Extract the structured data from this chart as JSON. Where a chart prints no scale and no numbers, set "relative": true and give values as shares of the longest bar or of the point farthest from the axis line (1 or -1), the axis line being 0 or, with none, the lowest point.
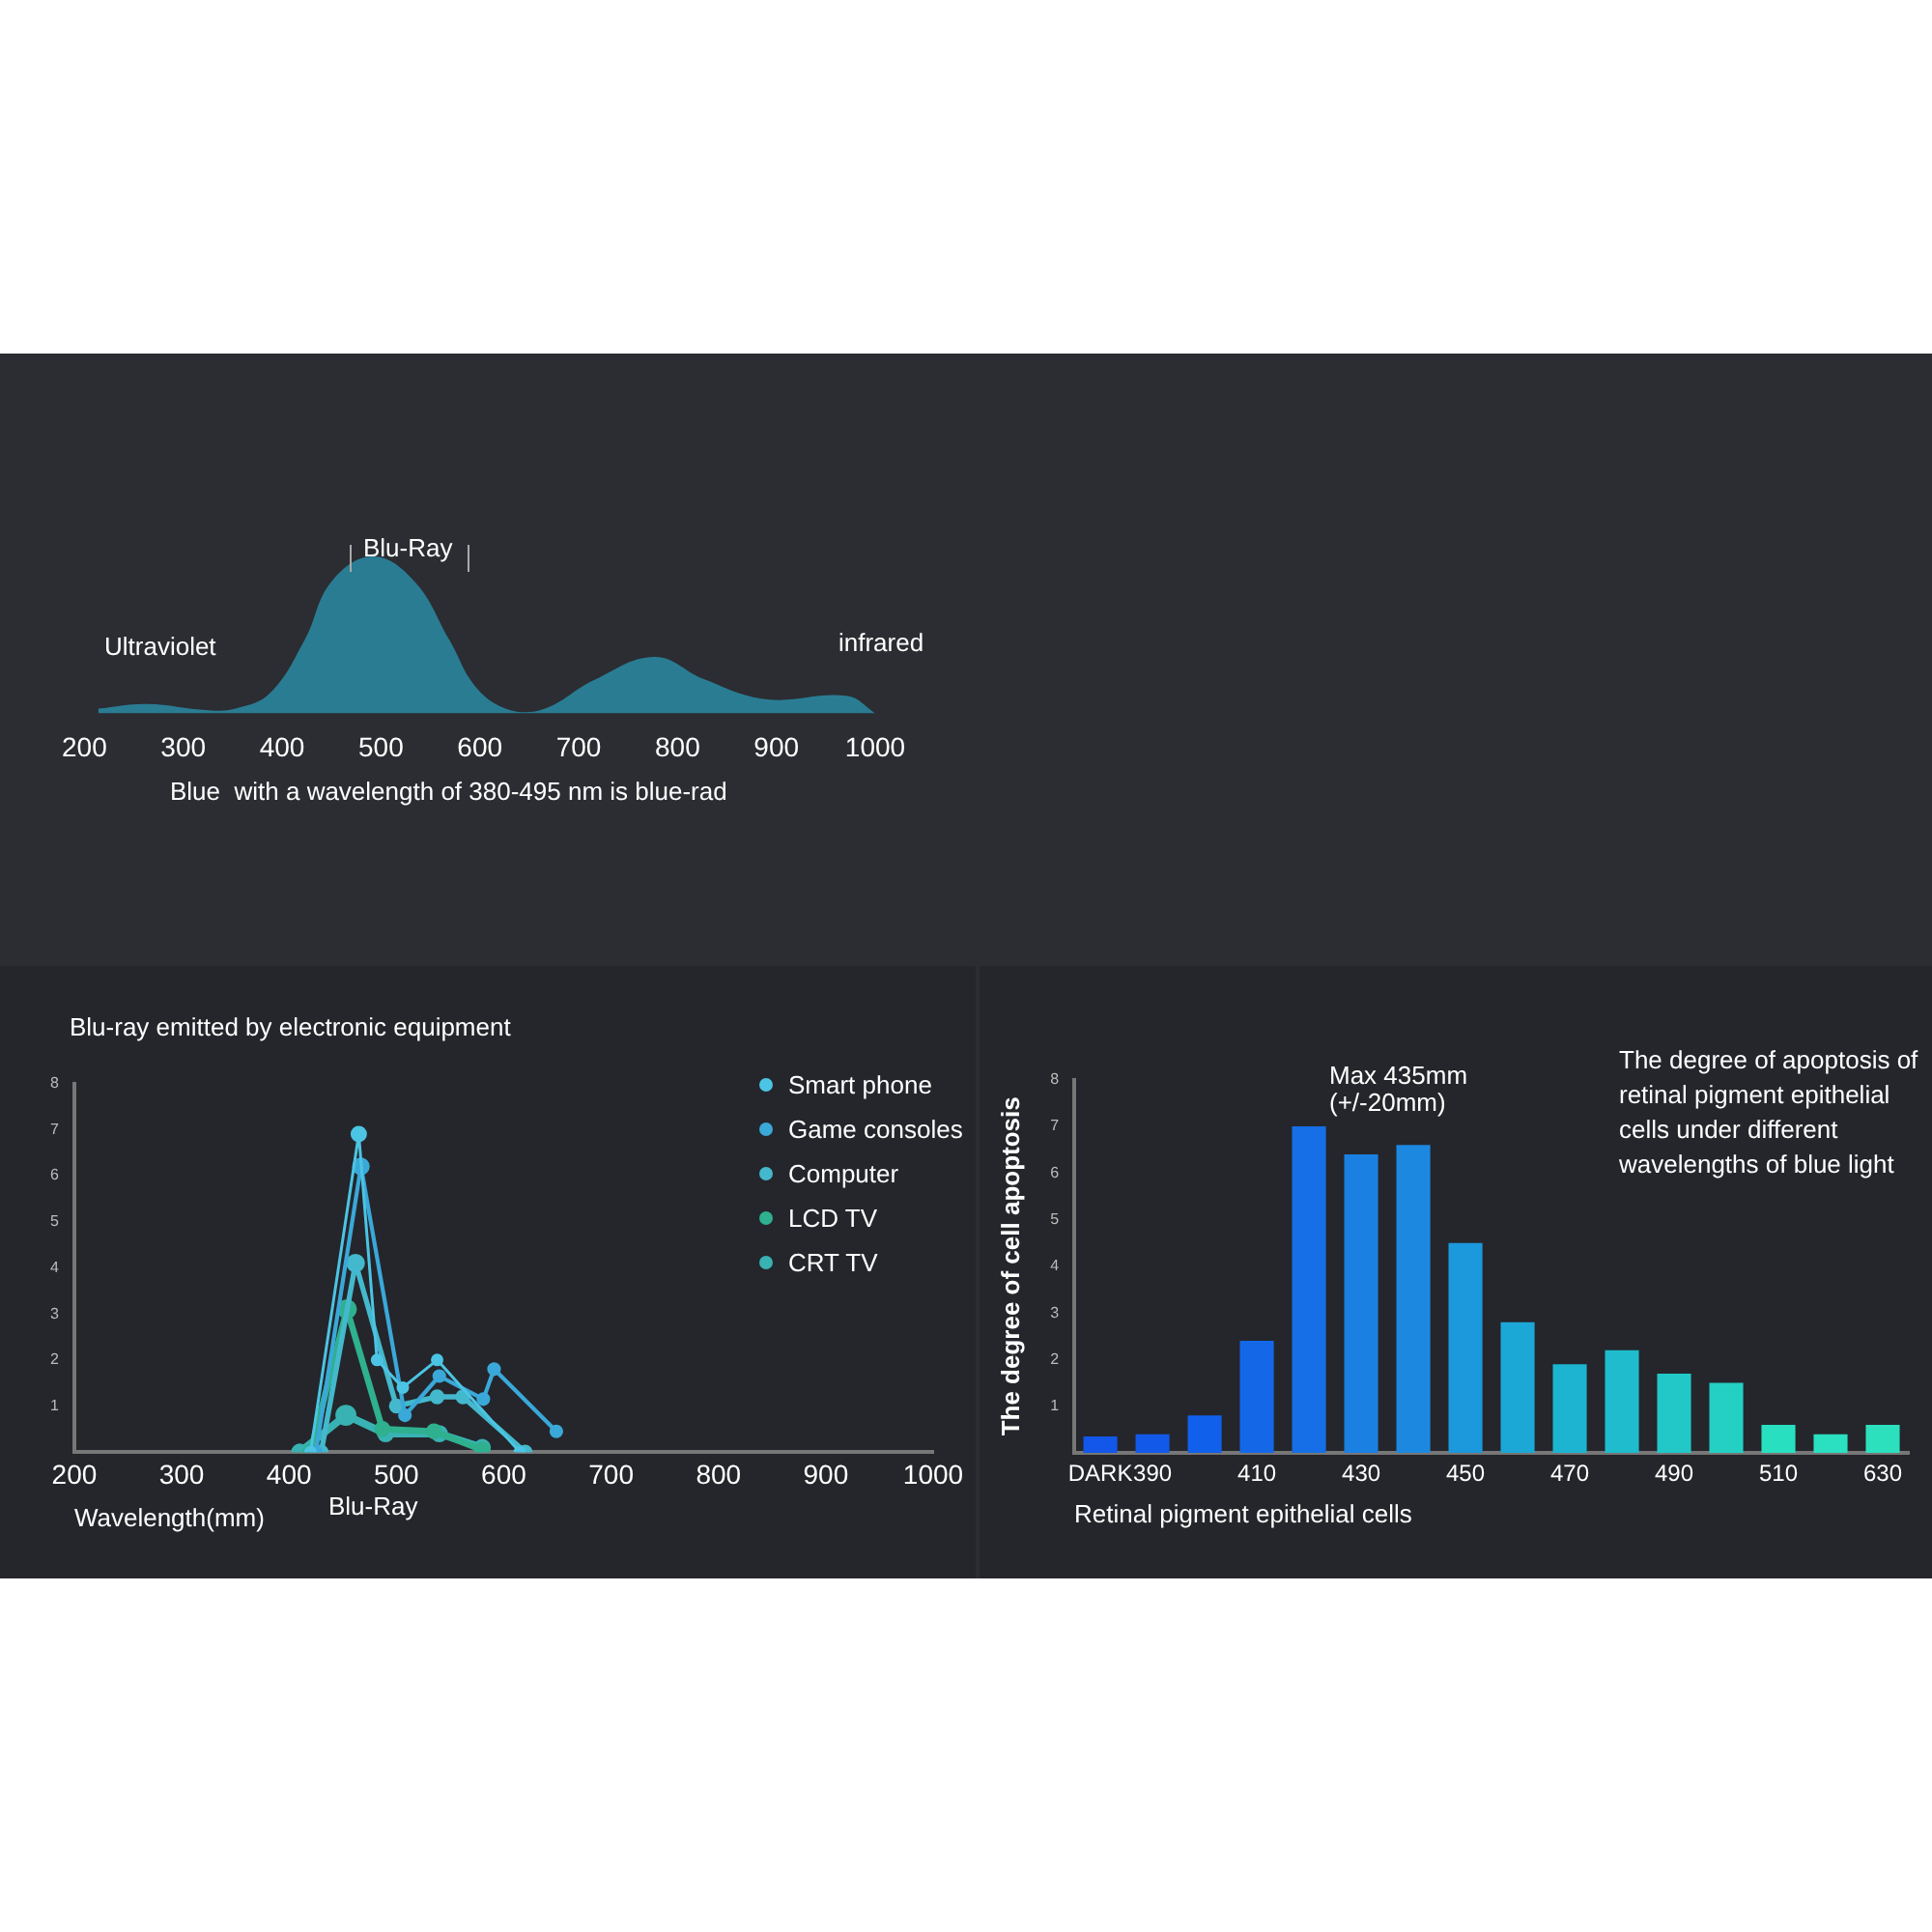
{
  "chart_data": [
    {
      "type": "area",
      "relative": true,
      "x": [
        214,
        263,
        325,
        353,
        388,
        423,
        450,
        492,
        534,
        569,
        597,
        631,
        666,
        715,
        777,
        826,
        889,
        972,
        1000
      ],
      "series": [
        {
          "color": "#2aa3c4",
          "values": [
            0.03,
            0.06,
            0.02,
            0.03,
            0.13,
            0.47,
            0.84,
            1,
            0.84,
            0.47,
            0.16,
            0.02,
            0.03,
            0.21,
            0.36,
            0.22,
            0.09,
            0.11,
            0
          ]
        }
      ],
      "xlim": [
        200,
        1000
      ],
      "xticks": [
        200,
        300,
        400,
        500,
        600,
        700,
        800,
        900,
        1000
      ],
      "annotations": [
        "Blu-Ray",
        "Ultraviolet",
        "infrared",
        "Blue  with a wavelength of 380-495 nm is blue-rad"
      ]
    },
    {
      "type": "line",
      "title": "Blu-ray emitted by electronic equipment",
      "xlabel": "Wavelength(mm)",
      "xlim": [
        200,
        1000
      ],
      "xticks": [
        200,
        300,
        400,
        500,
        600,
        700,
        800,
        900,
        1000
      ],
      "ylim": [
        0,
        8
      ],
      "yticks": [
        1,
        2,
        3,
        4,
        5,
        6,
        7,
        8
      ],
      "legend": "top right",
      "marker": "circle",
      "grid": false,
      "series": [
        {
          "name": "Smart phone",
          "color": "#4cc4e4",
          "x": [
            420,
            465,
            482,
            506,
            538,
            615
          ],
          "values": [
            0,
            6.9,
            2,
            1.4,
            2,
            0
          ]
        },
        {
          "name": "Game consoles",
          "color": "#3aa8d8",
          "x": [
            425,
            467,
            508,
            540,
            581,
            591,
            649
          ],
          "values": [
            0,
            6.2,
            0.8,
            1.65,
            1.15,
            1.8,
            0.45
          ]
        },
        {
          "name": "Computer",
          "color": "#44b8cc",
          "x": [
            430,
            462,
            500,
            538,
            562,
            620
          ],
          "values": [
            0,
            4.1,
            1,
            1.2,
            1.2,
            0
          ]
        },
        {
          "name": "LCD TV",
          "color": "#2fb08e",
          "x": [
            420,
            454,
            487,
            535,
            580
          ],
          "values": [
            0,
            3.1,
            0.5,
            0.45,
            0.05
          ]
        },
        {
          "name": "CRT TV",
          "color": "#38b2b2",
          "x": [
            410,
            453,
            490,
            540,
            580
          ],
          "values": [
            0,
            0.8,
            0.4,
            0.4,
            0.1
          ]
        }
      ],
      "annotations": [
        "Blu-Ray"
      ]
    },
    {
      "type": "bar",
      "title": "The degree of apoptosis of retinal pigment epithelial cells under different wavelengths of blue light",
      "xlabel": "Retinal pigment epithelial cells",
      "ylabel": "The degree of cell apoptosis",
      "categories": [
        "DARK",
        "390",
        null,
        "410",
        null,
        "430",
        null,
        "450",
        null,
        "470",
        null,
        "490",
        null,
        "510",
        null,
        "630"
      ],
      "values": [
        0.35,
        0.4,
        0.8,
        2.4,
        7.0,
        6.4,
        6.6,
        4.5,
        2.8,
        1.9,
        2.2,
        1.7,
        1.5,
        0.6,
        0.4,
        0.6
      ],
      "colors": [
        "#1257ea",
        "#1259ea",
        "#1160ec",
        "#1468e8",
        "#166fe6",
        "#1a80e2",
        "#1c88e0",
        "#1c98dc",
        "#1ca8d6",
        "#1cb4d0",
        "#1ebccc",
        "#22c8c8",
        "#24d0c4",
        "#28e0c0",
        "#2ae0c0",
        "#2ce0be"
      ],
      "ylim": [
        0,
        8
      ],
      "yticks": [
        1,
        2,
        3,
        4,
        5,
        6,
        7,
        8
      ],
      "grid": false,
      "annotations": [
        "Max 435mm\n(+/-20mm)"
      ]
    }
  ]
}
